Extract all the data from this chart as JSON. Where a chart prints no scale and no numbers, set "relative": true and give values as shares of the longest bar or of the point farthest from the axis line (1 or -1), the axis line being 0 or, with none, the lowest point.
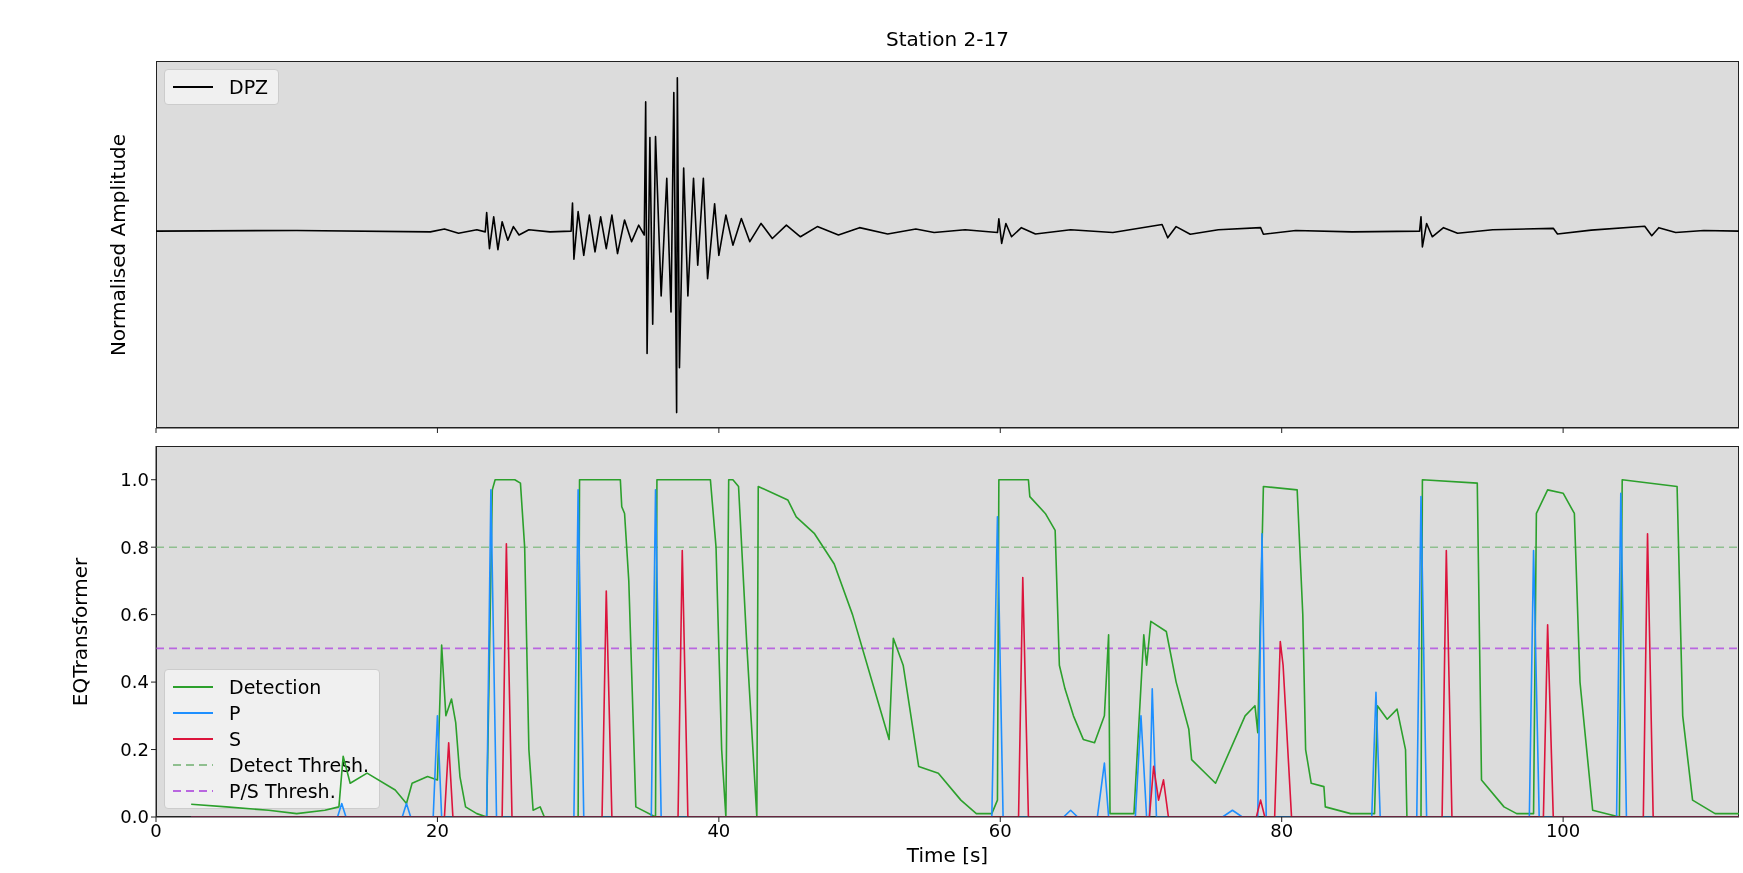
{
  "chart_data": [
    {
      "type": "line",
      "title": "Station 2-17",
      "ylabel": "Normalised Amplitude",
      "relative": true,
      "legend": "top left",
      "tick_labels": false,
      "xlim": [
        0,
        112.5
      ],
      "xticks": [
        0,
        20,
        40,
        60,
        80,
        100
      ],
      "series": [
        {
          "name": "DPZ",
          "color": "#000000",
          "x": [
            0,
            10,
            19.5,
            20.5,
            21.5,
            22.8,
            23.4,
            23.5,
            23.7,
            24.0,
            24.3,
            24.6,
            25.0,
            25.4,
            25.8,
            26.5,
            28.0,
            29.5,
            29.6,
            29.7,
            30.0,
            30.4,
            30.8,
            31.2,
            31.6,
            32.0,
            32.4,
            32.8,
            33.3,
            33.8,
            34.3,
            34.7,
            34.8,
            34.9,
            35.1,
            35.3,
            35.5,
            35.9,
            36.3,
            36.6,
            36.8,
            37.0,
            37.05,
            37.2,
            37.5,
            37.8,
            38.2,
            38.5,
            38.9,
            39.2,
            39.7,
            40.0,
            40.5,
            41.0,
            41.6,
            42.2,
            43.0,
            43.8,
            44.8,
            45.8,
            47.0,
            48.5,
            50.0,
            52.0,
            54.0,
            55.3,
            57.5,
            59.8,
            59.9,
            60.1,
            60.4,
            60.8,
            61.5,
            62.5,
            65.0,
            68.0,
            71.5,
            71.9,
            72.5,
            73.5,
            75.5,
            78.5,
            78.7,
            81.0,
            85.0,
            89.8,
            89.9,
            90.0,
            90.3,
            90.7,
            91.5,
            92.5,
            95.0,
            99.3,
            99.6,
            102.0,
            105.8,
            106.3,
            106.8,
            108.0,
            110.0,
            112.5
          ],
          "values": [
            0.562,
            0.564,
            0.56,
            0.568,
            0.556,
            0.566,
            0.56,
            0.615,
            0.512,
            0.603,
            0.509,
            0.589,
            0.536,
            0.575,
            0.551,
            0.566,
            0.56,
            0.562,
            0.642,
            0.482,
            0.618,
            0.493,
            0.608,
            0.503,
            0.603,
            0.512,
            0.608,
            0.498,
            0.594,
            0.532,
            0.579,
            0.551,
            0.931,
            0.213,
            0.829,
            0.296,
            0.832,
            0.377,
            0.713,
            0.331,
            0.958,
            0.044,
            1.0,
            0.172,
            0.742,
            0.377,
            0.713,
            0.465,
            0.713,
            0.426,
            0.64,
            0.493,
            0.608,
            0.522,
            0.598,
            0.532,
            0.584,
            0.541,
            0.579,
            0.546,
            0.575,
            0.551,
            0.572,
            0.554,
            0.568,
            0.558,
            0.566,
            0.558,
            0.597,
            0.527,
            0.584,
            0.546,
            0.572,
            0.554,
            0.566,
            0.558,
            0.581,
            0.543,
            0.575,
            0.553,
            0.566,
            0.572,
            0.553,
            0.564,
            0.56,
            0.562,
            0.603,
            0.517,
            0.584,
            0.546,
            0.572,
            0.556,
            0.566,
            0.57,
            0.554,
            0.565,
            0.576,
            0.549,
            0.572,
            0.558,
            0.564,
            0.562
          ]
        }
      ]
    },
    {
      "type": "line",
      "xlabel": "Time [s]",
      "ylabel": "EQTransformer",
      "legend": "lower left",
      "xlim": [
        0,
        112.5
      ],
      "xticks": [
        0,
        20,
        40,
        60,
        80,
        100
      ],
      "ylim": [
        0,
        1.1
      ],
      "yticks": [
        {
          "value": 0,
          "label": "0.0"
        },
        {
          "value": 0.2,
          "label": "0.2"
        },
        {
          "value": 0.4,
          "label": "0.4"
        },
        {
          "value": 0.6,
          "label": "0.6"
        },
        {
          "value": 0.8,
          "label": "0.8"
        },
        {
          "value": 1.0,
          "label": "1.0"
        }
      ],
      "series": [
        {
          "name": "Detection",
          "color": "#2ca02c",
          "x": [
            2.5,
            5,
            8,
            10,
            12,
            13.0,
            13.3,
            13.8,
            15,
            17,
            17.8,
            18.2,
            19.3,
            20.0,
            20.3,
            20.6,
            21.0,
            21.3,
            21.6,
            22.0,
            22.8,
            23.5,
            23.9,
            24.1,
            25.5,
            25.9,
            26.2,
            26.5,
            26.8,
            27.3,
            27.6,
            30.0,
            30.1,
            33.0,
            33.1,
            33.3,
            33.6,
            33.9,
            34.1,
            35.5,
            35.6,
            39.4,
            39.8,
            40.2,
            40.5,
            40.7,
            41.0,
            41.4,
            42.0,
            42.7,
            42.8,
            44.9,
            45.5,
            46.8,
            48.2,
            49.5,
            50.9,
            52.1,
            52.4,
            53.1,
            54.2,
            55.6,
            57.2,
            58.3,
            59.4,
            59.8,
            59.9,
            62.0,
            62.1,
            63.2,
            63.9,
            64.2,
            64.6,
            65.2,
            65.9,
            66.7,
            67.4,
            67.7,
            67.8,
            69.5,
            70.2,
            70.4,
            70.7,
            71.8,
            72.5,
            73.4,
            73.6,
            75.3,
            77.4,
            78.1,
            78.3,
            78.7,
            81.1,
            81.5,
            81.7,
            82.1,
            83.0,
            83.1,
            84.9,
            86.6,
            86.8,
            87.5,
            88.2,
            88.8,
            88.9,
            89.9,
            90.0,
            93.9,
            94.2,
            95.8,
            96.7,
            97.9,
            98.1,
            98.9,
            100.0,
            100.8,
            101.2,
            102.1,
            104.0,
            104.2,
            108.1,
            108.5,
            109.2,
            110.8,
            112.5
          ],
          "values": [
            0.038,
            0.03,
            0.02,
            0.01,
            0.02,
            0.03,
            0.18,
            0.1,
            0.13,
            0.08,
            0.04,
            0.1,
            0.12,
            0.11,
            0.51,
            0.3,
            0.35,
            0.28,
            0.12,
            0.03,
            0.01,
            0.0,
            0.97,
            1.0,
            1.0,
            0.99,
            0.8,
            0.2,
            0.02,
            0.03,
            0.0,
            0.0,
            1.0,
            1.0,
            0.92,
            0.9,
            0.7,
            0.3,
            0.03,
            0.0,
            1.0,
            1.0,
            0.8,
            0.2,
            0.0,
            1.0,
            1.0,
            0.98,
            0.5,
            0.0,
            0.98,
            0.94,
            0.89,
            0.84,
            0.75,
            0.6,
            0.4,
            0.23,
            0.53,
            0.45,
            0.15,
            0.13,
            0.05,
            0.01,
            0.01,
            0.05,
            1.0,
            1.0,
            0.95,
            0.9,
            0.85,
            0.45,
            0.38,
            0.3,
            0.23,
            0.22,
            0.3,
            0.54,
            0.01,
            0.01,
            0.54,
            0.45,
            0.58,
            0.55,
            0.4,
            0.26,
            0.17,
            0.1,
            0.3,
            0.33,
            0.25,
            0.98,
            0.97,
            0.6,
            0.2,
            0.1,
            0.09,
            0.03,
            0.01,
            0.01,
            0.33,
            0.29,
            0.32,
            0.2,
            0.0,
            0.0,
            1.0,
            0.99,
            0.11,
            0.03,
            0.01,
            0.01,
            0.9,
            0.97,
            0.96,
            0.9,
            0.4,
            0.02,
            0.0,
            1.0,
            0.98,
            0.3,
            0.05,
            0.01,
            0.01
          ]
        },
        {
          "name": "P",
          "color": "#1e8fff",
          "x": [
            2.5,
            12.9,
            13.2,
            13.5,
            17.5,
            17.8,
            18.1,
            19.7,
            20.0,
            20.3,
            23.5,
            23.8,
            24.2,
            29.7,
            30.0,
            30.4,
            35.2,
            35.5,
            35.9,
            59.4,
            59.8,
            60.2,
            64.5,
            65.0,
            65.5,
            66.9,
            67.4,
            67.7,
            69.6,
            70.0,
            70.4,
            70.6,
            70.8,
            71.1,
            75.8,
            76.5,
            77.2,
            78.3,
            78.6,
            78.9,
            86.4,
            86.7,
            87.0,
            89.6,
            89.9,
            90.3,
            97.6,
            97.9,
            98.3,
            103.8,
            104.1,
            104.5,
            112.5
          ],
          "values": [
            0,
            0,
            0.04,
            0,
            0,
            0.04,
            0,
            0,
            0.3,
            0,
            0,
            0.97,
            0,
            0,
            0.97,
            0,
            0,
            0.97,
            0,
            0,
            0.89,
            0,
            0,
            0.02,
            0,
            0,
            0.16,
            0,
            0,
            0.3,
            0,
            0,
            0.38,
            0,
            0,
            0.02,
            0,
            0,
            0.84,
            0,
            0,
            0.37,
            0,
            0,
            0.95,
            0,
            0,
            0.79,
            0,
            0,
            0.96,
            0,
            0
          ]
        },
        {
          "name": "S",
          "color": "#dc143c",
          "x": [
            2.5,
            20.5,
            20.8,
            21.1,
            24.6,
            24.9,
            25.3,
            31.7,
            32.0,
            32.4,
            37.1,
            37.4,
            37.8,
            61.3,
            61.6,
            62.0,
            70.6,
            70.9,
            71.25,
            71.6,
            71.95,
            78.2,
            78.5,
            78.8,
            79.5,
            79.9,
            80.1,
            80.3,
            80.7,
            91.4,
            91.7,
            92.1,
            98.6,
            98.9,
            99.3,
            105.7,
            106.0,
            106.4,
            112.5
          ],
          "values": [
            0,
            0,
            0.22,
            0,
            0,
            0.81,
            0,
            0,
            0.67,
            0,
            0,
            0.79,
            0,
            0,
            0.71,
            0,
            0,
            0.15,
            0.05,
            0.11,
            0,
            0,
            0.05,
            0,
            0,
            0.52,
            0.45,
            0.3,
            0,
            0,
            0.79,
            0,
            0,
            0.57,
            0,
            0,
            0.84,
            0,
            0
          ]
        }
      ],
      "ref_lines": [
        {
          "axis": "y",
          "value": 0.8,
          "label": "Detect Thresh.",
          "color": "#8fbf8f",
          "line_style": "dashed"
        },
        {
          "axis": "y",
          "value": 0.5,
          "label": "P/S Thresh.",
          "color": "#b966e0",
          "line_style": "dashed"
        }
      ]
    }
  ]
}
